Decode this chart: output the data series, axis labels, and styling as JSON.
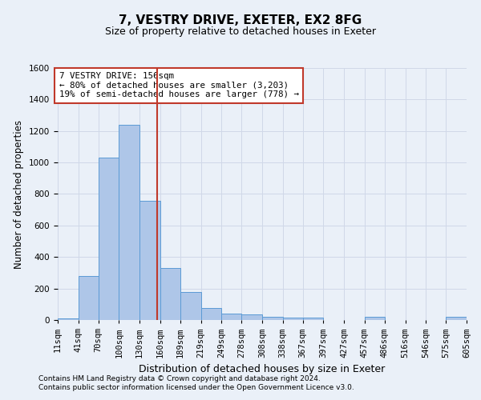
{
  "title": "7, VESTRY DRIVE, EXETER, EX2 8FG",
  "subtitle": "Size of property relative to detached houses in Exeter",
  "xlabel": "Distribution of detached houses by size in Exeter",
  "ylabel": "Number of detached properties",
  "footnote1": "Contains HM Land Registry data © Crown copyright and database right 2024.",
  "footnote2": "Contains public sector information licensed under the Open Government Licence v3.0.",
  "annotation_line1": "7 VESTRY DRIVE: 156sqm",
  "annotation_line2": "← 80% of detached houses are smaller (3,203)",
  "annotation_line3": "19% of semi-detached houses are larger (778) →",
  "bar_edges": [
    11,
    41,
    70,
    100,
    130,
    160,
    189,
    219,
    249,
    278,
    308,
    338,
    367,
    397,
    427,
    457,
    486,
    516,
    546,
    575,
    605
  ],
  "bar_heights": [
    10,
    280,
    1030,
    1240,
    755,
    330,
    180,
    75,
    40,
    35,
    20,
    15,
    15,
    0,
    0,
    20,
    0,
    0,
    0,
    20,
    0
  ],
  "bar_color": "#aec6e8",
  "bar_edgecolor": "#5b9bd5",
  "vline_color": "#c0392b",
  "vline_x": 156,
  "ylim": [
    0,
    1600
  ],
  "yticks": [
    0,
    200,
    400,
    600,
    800,
    1000,
    1200,
    1400,
    1600
  ],
  "annotation_box_edgecolor": "#c0392b",
  "annotation_box_facecolor": "#ffffff",
  "grid_color": "#d0d8e8",
  "background_color": "#eaf0f8",
  "tick_label_fontsize": 7.5,
  "xlabel_fontsize": 9,
  "ylabel_fontsize": 8.5,
  "title_fontsize": 11,
  "subtitle_fontsize": 9,
  "annotation_fontsize": 7.8,
  "footnote_fontsize": 6.5
}
